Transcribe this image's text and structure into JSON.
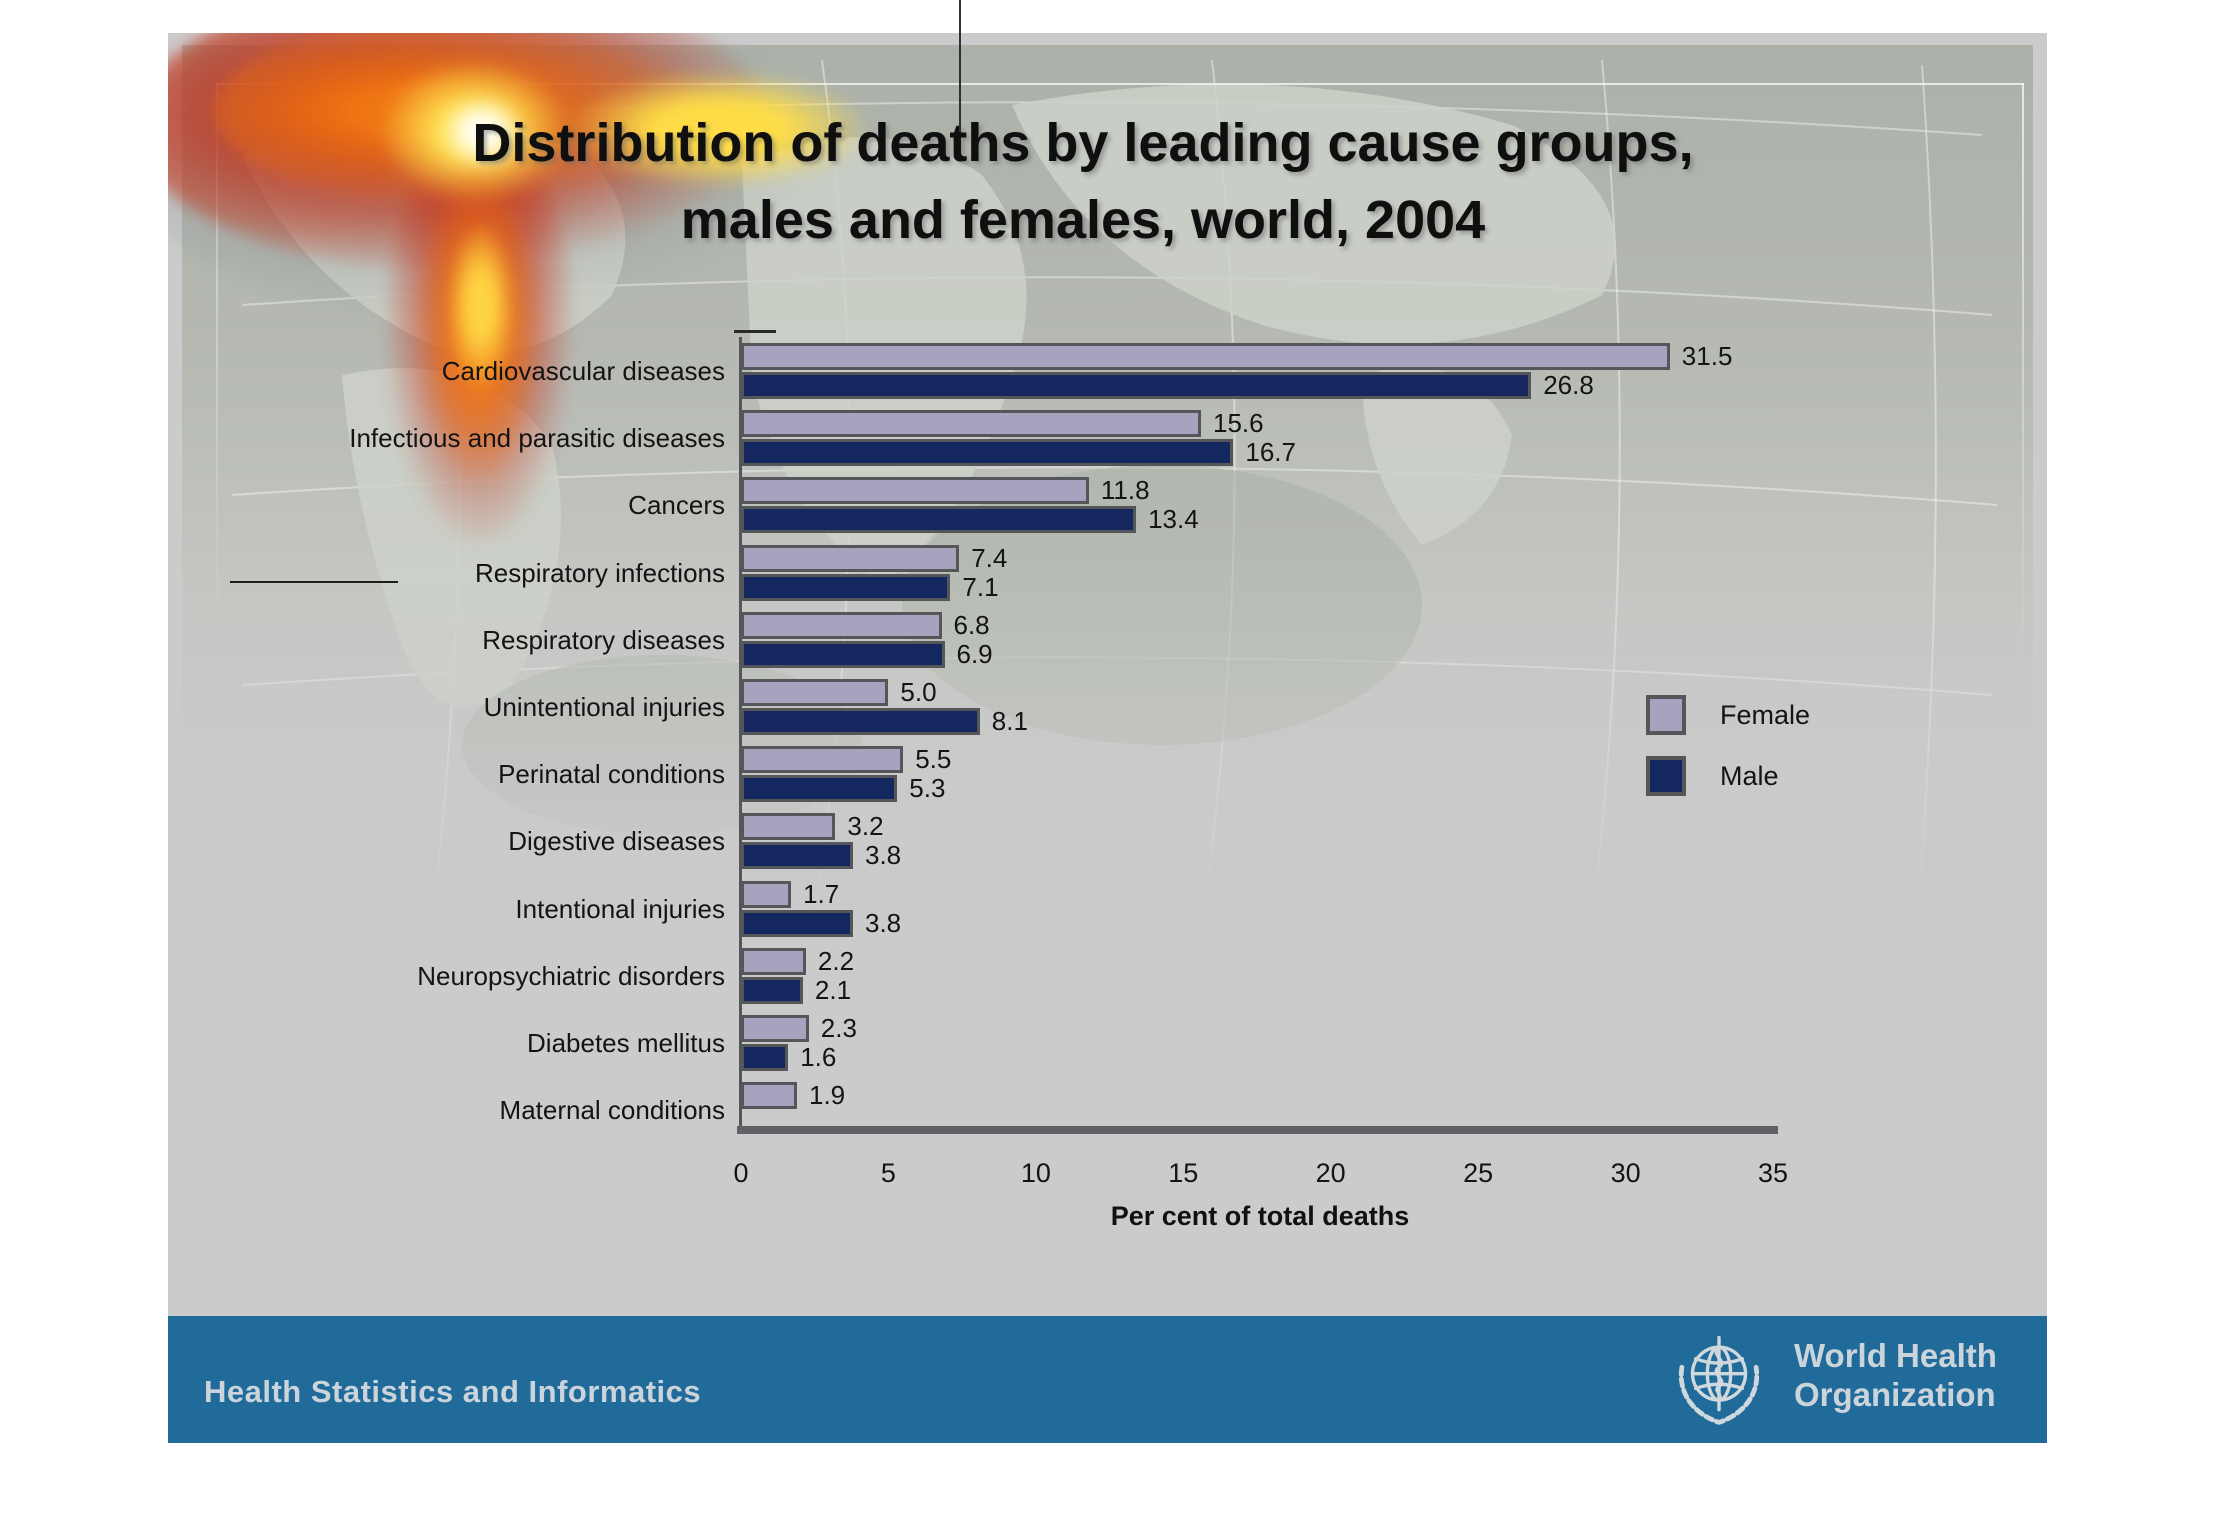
{
  "slide": {
    "title_line1": "Distribution of deaths by leading cause groups,",
    "title_line2": "males and females, world, 2004"
  },
  "chart_data": {
    "type": "bar",
    "orientation": "horizontal",
    "title": "Distribution of deaths by leading cause groups, males and females, world, 2004",
    "xlabel": "Per cent of total deaths",
    "xlim": [
      0,
      35
    ],
    "x_ticks": [
      0,
      5,
      10,
      15,
      20,
      25,
      30,
      35
    ],
    "grid": false,
    "legend_position": "right",
    "legend": [
      "Female",
      "Male"
    ],
    "categories": [
      "Cardiovascular diseases",
      "Infectious and parasitic diseases",
      "Cancers",
      "Respiratory infections",
      "Respiratory diseases",
      "Unintentional injuries",
      "Perinatal conditions",
      "Digestive diseases",
      "Intentional injuries",
      "Neuropsychiatric disorders",
      "Diabetes mellitus",
      "Maternal conditions"
    ],
    "series": [
      {
        "name": "Female",
        "values": [
          31.5,
          15.6,
          11.8,
          7.4,
          6.8,
          5.0,
          5.5,
          3.2,
          1.7,
          2.2,
          2.3,
          1.9
        ]
      },
      {
        "name": "Male",
        "values": [
          26.8,
          16.7,
          13.4,
          7.1,
          6.9,
          8.1,
          5.3,
          3.8,
          3.8,
          2.1,
          1.6,
          null
        ]
      }
    ]
  },
  "footer": {
    "department": "Health Statistics and Informatics",
    "logo_line1": "World Health",
    "logo_line2": "Organization"
  },
  "colors": {
    "female_bar": "#a8a2be",
    "male_bar": "#14275f",
    "bar_border": "#55565a",
    "slide_bg": "#cbcbcb",
    "footer_band": "#216b9b",
    "footer_text": "#cbd4da",
    "title_text": "#0f0f0f"
  }
}
